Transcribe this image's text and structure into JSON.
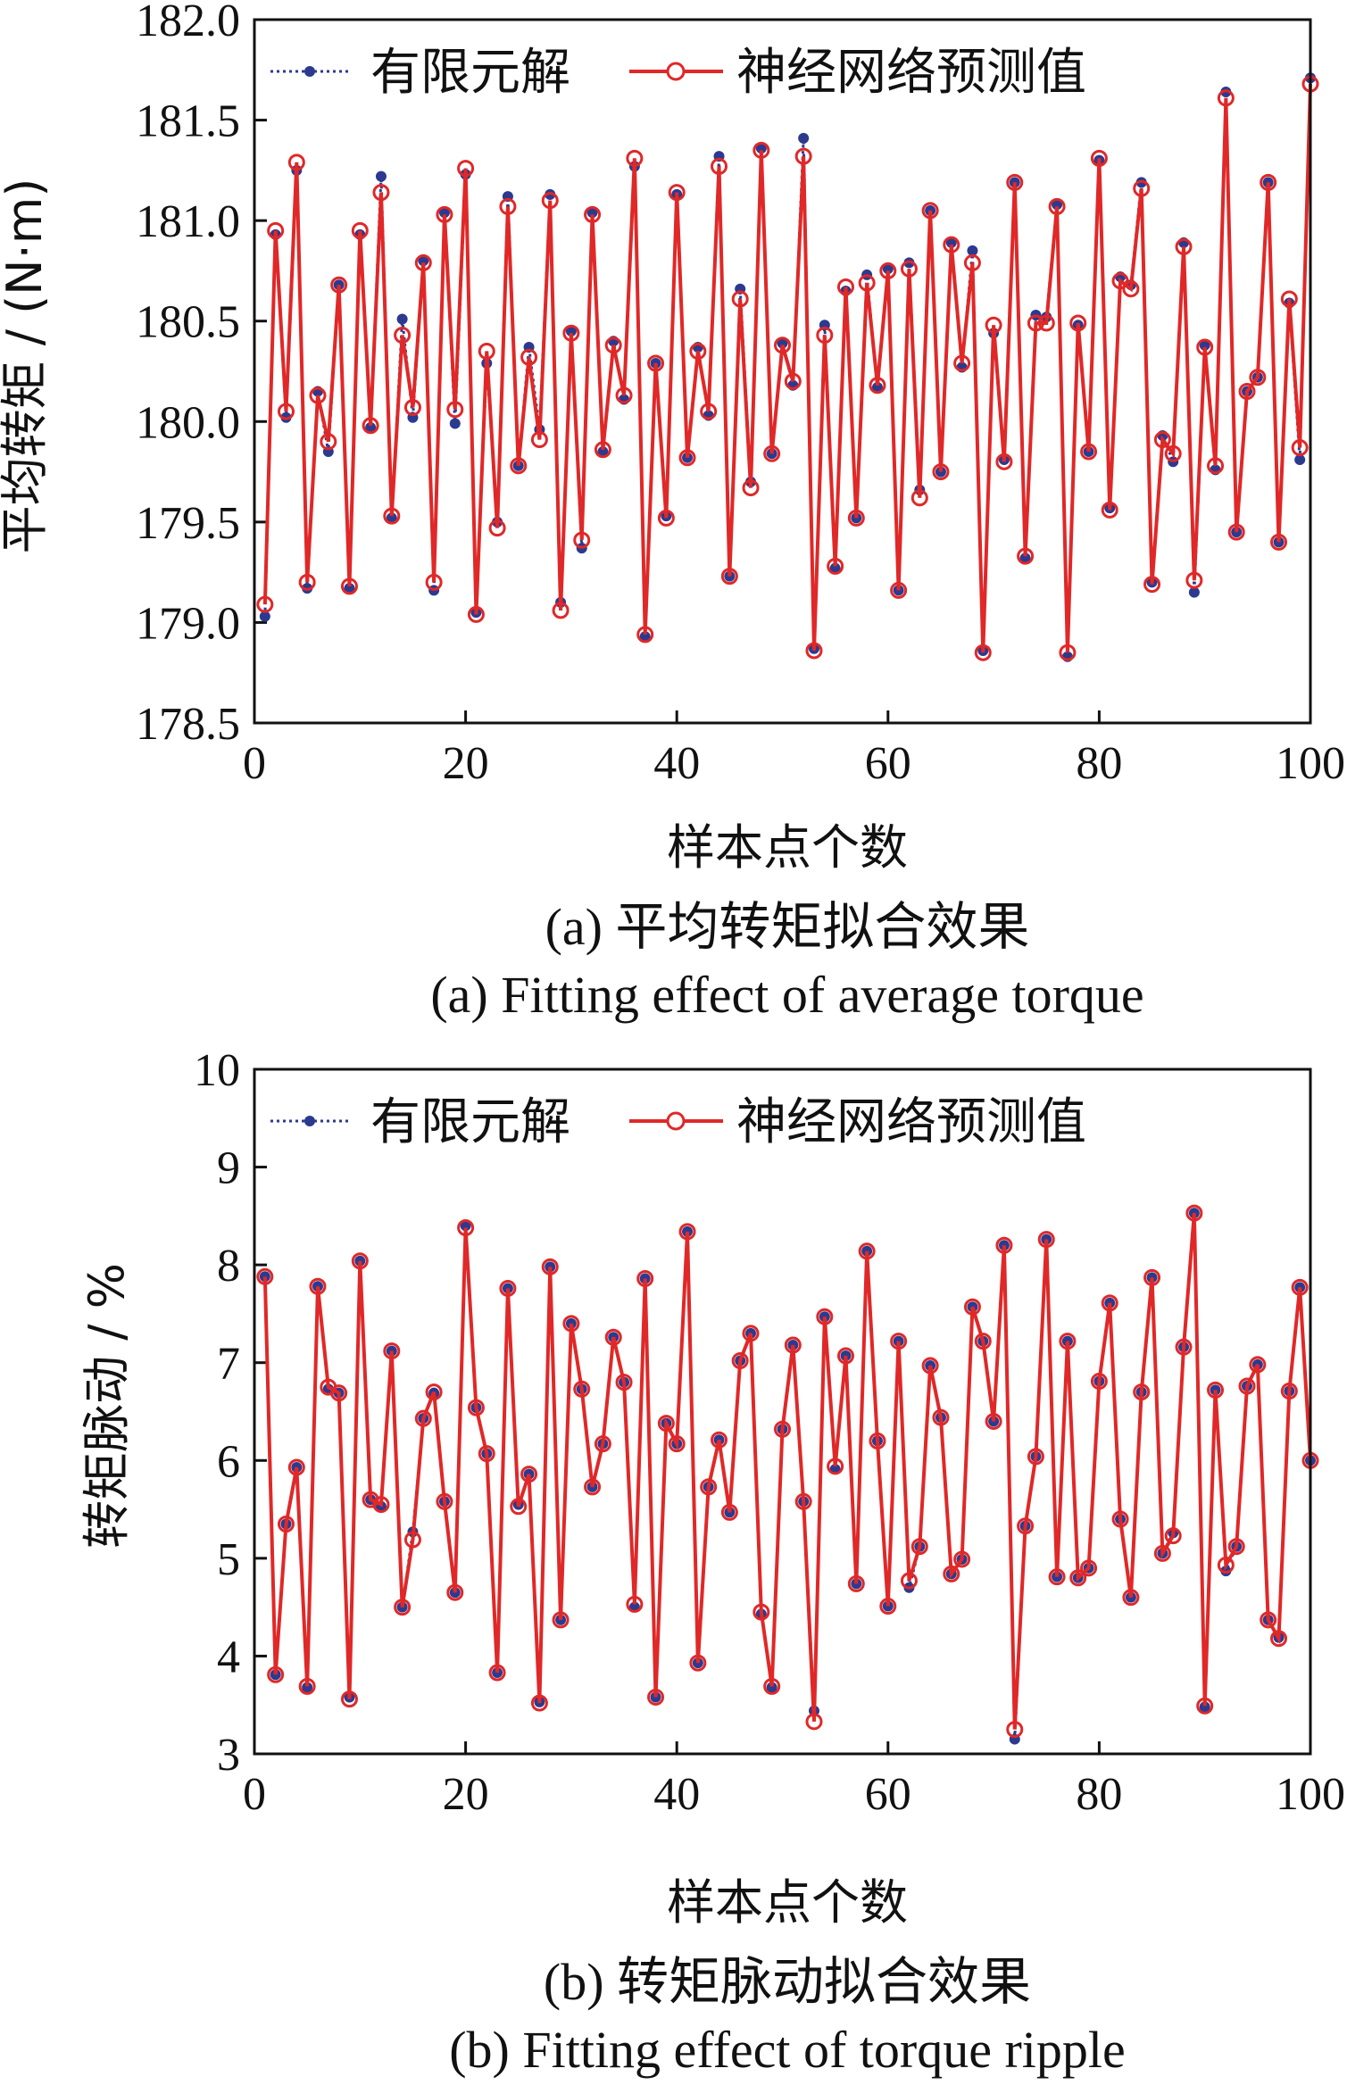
{
  "chart_data": [
    {
      "type": "line",
      "ylabel": "平均转矩 / (N·m)",
      "xlabel": "样本点个数",
      "caption_cn": "(a) 平均转矩拟合效果",
      "caption_en": "(a) Fitting effect of average torque",
      "xlim": [
        0,
        100
      ],
      "ylim": [
        178.5,
        182.0
      ],
      "xticks": [
        "0",
        "20",
        "40",
        "60",
        "80",
        "100"
      ],
      "yticks": [
        "178.5",
        "179.0",
        "179.5",
        "180.0",
        "180.5",
        "181.0",
        "181.5",
        "182.0"
      ],
      "legend_position": "top-left",
      "series": [
        {
          "name": "有限元解",
          "color": "#2b3a8f",
          "style": "dotted-star",
          "values": [
            179.03,
            180.93,
            180.02,
            181.25,
            179.17,
            180.15,
            179.85,
            180.68,
            179.17,
            180.93,
            179.97,
            181.22,
            179.52,
            180.51,
            180.02,
            180.8,
            179.16,
            181.04,
            179.99,
            181.23,
            179.05,
            180.29,
            179.5,
            181.12,
            179.78,
            180.37,
            179.96,
            181.13,
            179.1,
            180.45,
            179.37,
            181.04,
            179.85,
            180.4,
            180.11,
            181.27,
            178.93,
            180.29,
            179.53,
            181.13,
            179.82,
            180.37,
            180.03,
            181.32,
            179.23,
            180.66,
            179.7,
            181.36,
            179.84,
            180.39,
            180.18,
            181.41,
            178.87,
            180.48,
            179.27,
            180.65,
            179.52,
            180.73,
            180.17,
            180.76,
            179.16,
            180.79,
            179.66,
            181.05,
            179.75,
            180.89,
            180.27,
            180.85,
            178.86,
            180.44,
            179.81,
            181.19,
            179.32,
            180.53,
            180.52,
            181.08,
            178.83,
            180.48,
            179.85,
            181.3,
            179.57,
            180.72,
            180.68,
            181.19,
            179.2,
            179.93,
            179.8,
            180.89,
            179.15,
            180.38,
            179.76,
            181.64,
            179.45,
            180.15,
            180.22,
            181.19,
            179.4,
            180.59,
            179.81,
            181.71
          ]
        },
        {
          "name": "神经网络预测值",
          "color": "#e02828",
          "style": "solid-circle",
          "values": [
            179.09,
            180.95,
            180.05,
            181.29,
            179.2,
            180.13,
            179.9,
            180.68,
            179.18,
            180.95,
            179.98,
            181.14,
            179.53,
            180.43,
            180.07,
            180.79,
            179.2,
            181.03,
            180.06,
            181.26,
            179.04,
            180.35,
            179.47,
            181.07,
            179.78,
            180.32,
            179.91,
            181.1,
            179.06,
            180.44,
            179.41,
            181.03,
            179.86,
            180.38,
            180.13,
            181.31,
            178.94,
            180.29,
            179.52,
            181.14,
            179.82,
            180.35,
            180.05,
            181.27,
            179.23,
            180.61,
            179.67,
            181.35,
            179.84,
            180.38,
            180.2,
            181.32,
            178.86,
            180.43,
            179.28,
            180.67,
            179.52,
            180.69,
            180.18,
            180.75,
            179.16,
            180.76,
            179.62,
            181.05,
            179.75,
            180.88,
            180.29,
            180.79,
            178.85,
            180.48,
            179.8,
            181.19,
            179.33,
            180.49,
            180.49,
            181.07,
            178.85,
            180.49,
            179.85,
            181.31,
            179.56,
            180.7,
            180.66,
            181.16,
            179.19,
            179.91,
            179.84,
            180.87,
            179.21,
            180.37,
            179.78,
            181.61,
            179.45,
            180.15,
            180.22,
            181.19,
            179.4,
            180.61,
            179.87,
            181.68
          ]
        }
      ]
    },
    {
      "type": "line",
      "ylabel": "转矩脉动 / %",
      "xlabel": "样本点个数",
      "caption_cn": "(b) 转矩脉动拟合效果",
      "caption_en": "(b) Fitting effect of torque ripple",
      "xlim": [
        0,
        100
      ],
      "ylim": [
        3,
        10
      ],
      "xticks": [
        "0",
        "20",
        "40",
        "60",
        "80",
        "100"
      ],
      "yticks": [
        "3",
        "4",
        "5",
        "6",
        "7",
        "8",
        "9",
        "10"
      ],
      "legend_position": "top-left",
      "series": [
        {
          "name": "有限元解",
          "color": "#2b3a8f",
          "style": "dotted-star",
          "values": [
            7.88,
            3.81,
            5.35,
            5.93,
            3.68,
            7.78,
            6.73,
            6.69,
            3.58,
            8.04,
            5.6,
            5.53,
            7.12,
            4.5,
            5.27,
            6.43,
            6.69,
            5.58,
            4.65,
            8.4,
            6.54,
            6.07,
            3.83,
            7.76,
            5.55,
            5.86,
            3.53,
            7.98,
            4.37,
            7.4,
            6.73,
            5.73,
            6.17,
            7.26,
            6.8,
            4.5,
            7.86,
            3.58,
            6.38,
            6.17,
            8.34,
            3.93,
            5.73,
            6.21,
            5.47,
            7.02,
            7.3,
            4.43,
            3.68,
            6.32,
            7.18,
            5.58,
            3.44,
            7.47,
            5.91,
            7.07,
            4.74,
            8.14,
            6.2,
            4.51,
            7.22,
            4.7,
            5.12,
            6.97,
            6.44,
            4.84,
            4.99,
            7.57,
            7.22,
            6.4,
            8.2,
            3.15,
            5.33,
            6.04,
            8.26,
            4.81,
            7.22,
            4.8,
            4.9,
            6.81,
            7.61,
            5.4,
            4.6,
            6.7,
            7.87,
            5.05,
            5.26,
            7.16,
            8.53,
            3.48,
            6.72,
            4.87,
            5.12,
            6.76,
            6.98,
            4.37,
            4.19,
            6.71,
            7.77,
            6.0
          ]
        },
        {
          "name": "神经网络预测值",
          "color": "#e02828",
          "style": "solid-circle",
          "values": [
            7.88,
            3.81,
            5.35,
            5.93,
            3.69,
            7.78,
            6.75,
            6.69,
            3.56,
            8.04,
            5.6,
            5.55,
            7.12,
            4.5,
            5.19,
            6.43,
            6.7,
            5.58,
            4.65,
            8.38,
            6.54,
            6.07,
            3.83,
            7.76,
            5.53,
            5.86,
            3.52,
            7.98,
            4.37,
            7.4,
            6.73,
            5.73,
            6.17,
            7.26,
            6.8,
            4.53,
            7.86,
            3.58,
            6.38,
            6.17,
            8.34,
            3.93,
            5.73,
            6.21,
            5.47,
            7.02,
            7.3,
            4.45,
            3.69,
            6.32,
            7.18,
            5.58,
            3.33,
            7.47,
            5.94,
            7.07,
            4.74,
            8.14,
            6.2,
            4.51,
            7.22,
            4.77,
            5.12,
            6.97,
            6.44,
            4.84,
            4.99,
            7.57,
            7.22,
            6.4,
            8.2,
            3.25,
            5.33,
            6.04,
            8.26,
            4.81,
            7.22,
            4.8,
            4.9,
            6.81,
            7.61,
            5.4,
            4.6,
            6.7,
            7.87,
            5.05,
            5.23,
            7.16,
            8.53,
            3.49,
            6.72,
            4.93,
            5.12,
            6.76,
            6.98,
            4.37,
            4.18,
            6.71,
            7.77,
            6.0
          ]
        }
      ]
    }
  ]
}
